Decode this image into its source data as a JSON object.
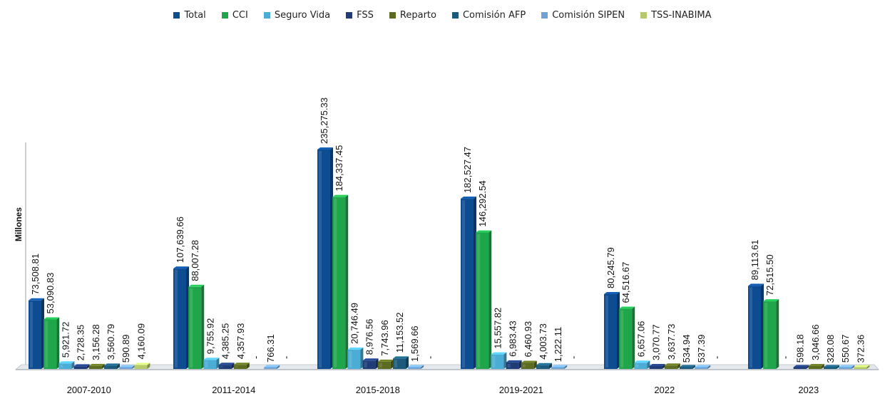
{
  "chart_data": {
    "type": "bar",
    "ylabel": "Millones",
    "xlabel": "",
    "ylim": [
      0,
      250000
    ],
    "grid": false,
    "legend_position": "top",
    "categories": [
      "2007-2010",
      "2011-2014",
      "2015-2018",
      "2019-2021",
      "2022",
      "2023"
    ],
    "series": [
      {
        "name": "Total",
        "color": "#0e4c92",
        "values": [
          73508.81,
          107639.66,
          235275.33,
          182527.47,
          80245.79,
          89113.61
        ],
        "labels": [
          "73,508.81",
          "107,639.66",
          "235,275.33",
          "182,527.47",
          "80,245.79",
          "89,113.61"
        ]
      },
      {
        "name": "CCI",
        "color": "#1fa64a",
        "values": [
          53090.83,
          88007.28,
          184337.45,
          146292.54,
          64516.67,
          72515.5
        ],
        "labels": [
          "53,090.83",
          "88,007.28",
          "184,337.45",
          "146,292.54",
          "64,516.67",
          "72,515.50"
        ]
      },
      {
        "name": "Seguro Vida",
        "color": "#4bacd6",
        "values": [
          5921.72,
          9755.92,
          20746.49,
          15557.82,
          6657.06,
          0
        ],
        "labels": [
          "5,921.72",
          "9,755.92",
          "20,746.49",
          "15,557.82",
          "6,657.06",
          "-"
        ]
      },
      {
        "name": "FSS",
        "color": "#1f3c78",
        "values": [
          2728.35,
          4385.25,
          8976.56,
          6983.43,
          3070.77,
          598.18
        ],
        "labels": [
          "2,728.35",
          "4,385.25",
          "8,976.56",
          "6,983.43",
          "3,070.77",
          "598.18"
        ]
      },
      {
        "name": "Reparto",
        "color": "#5b6b1f",
        "values": [
          3156.28,
          4357.93,
          7743.96,
          6460.93,
          3637.73,
          3046.66
        ],
        "labels": [
          "3,156.28",
          "4,357.93",
          "7,743.96",
          "6,460.93",
          "3,637.73",
          "3,046.66"
        ]
      },
      {
        "name": "Comisión AFP",
        "color": "#1b5a7a",
        "values": [
          3560.79,
          0,
          11153.52,
          4003.73,
          534.94,
          328.08
        ],
        "labels": [
          "3,560.79",
          "-",
          "11,153.52",
          "4,003.73",
          "534.94",
          "328.08"
        ]
      },
      {
        "name": "Comisión SIPEN",
        "color": "#6fa3d8",
        "values": [
          590.89,
          766.31,
          1569.66,
          1222.11,
          537.39,
          550.67
        ],
        "labels": [
          "590.89",
          "766.31",
          "1,569.66",
          "1,222.11",
          "537.39",
          "550.67"
        ]
      },
      {
        "name": "TSS-INABIMA",
        "color": "#b6c96a",
        "values": [
          4160.09,
          0,
          0,
          0,
          0,
          372.36
        ],
        "labels": [
          "4,160.09",
          "-",
          "-",
          "-",
          "-",
          "372.36"
        ]
      }
    ]
  }
}
